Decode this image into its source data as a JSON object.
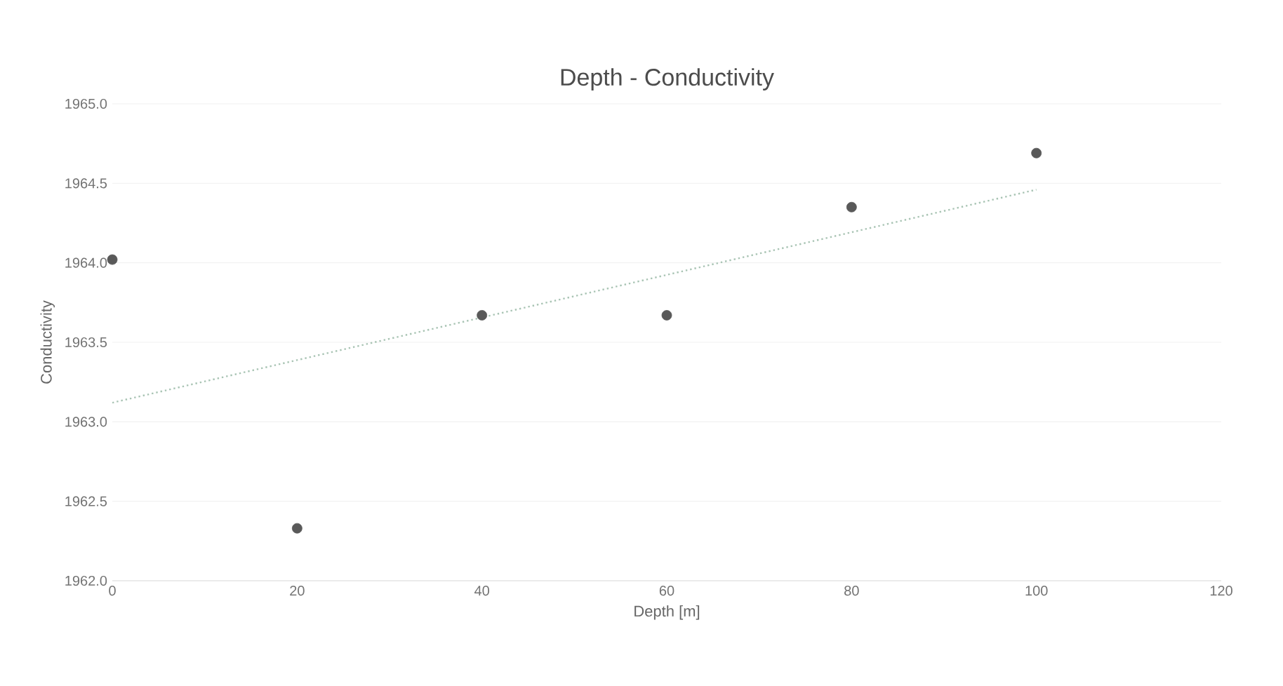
{
  "chart_data": {
    "type": "scatter",
    "title": "Depth - Conductivity",
    "xlabel": "Depth [m]",
    "ylabel": "Conductivity",
    "xlim": [
      0,
      120
    ],
    "xticks": [
      0,
      20,
      40,
      60,
      80,
      100,
      120
    ],
    "ylim": [
      1962,
      1965
    ],
    "yticks": [
      {
        "value": 1962,
        "label": "1962.0"
      },
      {
        "value": 1962.5,
        "label": "1962.5"
      },
      {
        "value": 1963,
        "label": "1963.0"
      },
      {
        "value": 1963.5,
        "label": "1963.5"
      },
      {
        "value": 1964,
        "label": "1964.0"
      },
      {
        "value": 1964.5,
        "label": "1964.5"
      },
      {
        "value": 1965,
        "label": "1965.0"
      }
    ],
    "grid": "y",
    "series": [
      {
        "color": "#595959",
        "marker": "circle",
        "x": [
          0,
          20,
          40,
          60,
          80,
          100
        ],
        "values": [
          1964.02,
          1962.33,
          1963.67,
          1963.67,
          1964.35,
          1964.69
        ]
      },
      {
        "type": "line",
        "color": "#a9c4b4",
        "line_style": "dotted",
        "marker": "none",
        "x": [
          0,
          100
        ],
        "values": [
          1963.12,
          1964.46
        ]
      }
    ]
  }
}
